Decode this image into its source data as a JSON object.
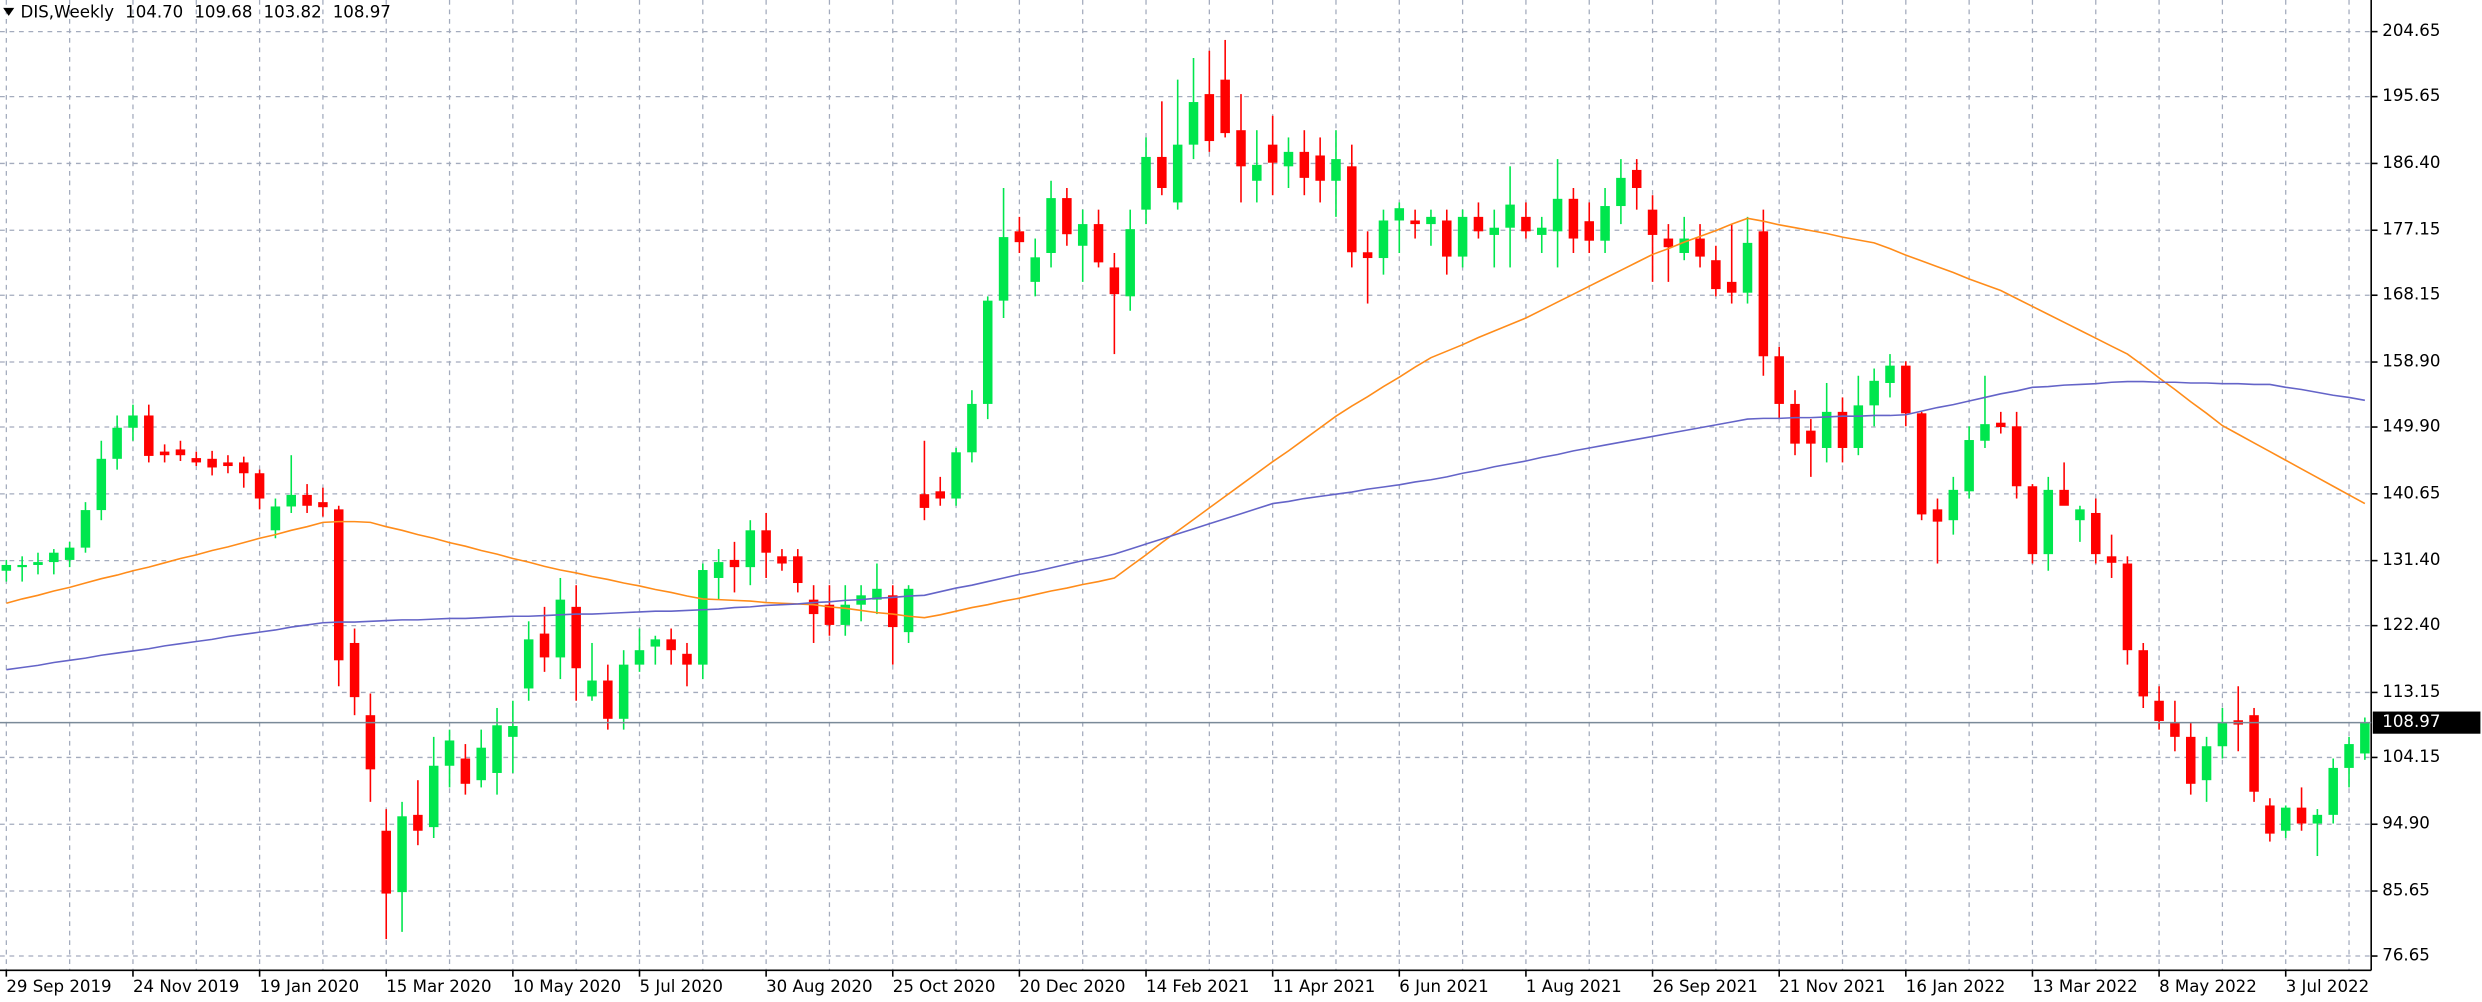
{
  "chart_data": {
    "type": "candlestick",
    "symbol": "DIS,Weekly",
    "quote": [
      {
        "value": 104.7,
        "label": "104.70"
      },
      {
        "value": 109.68,
        "label": "109.68"
      },
      {
        "value": 103.82,
        "label": "103.82"
      },
      {
        "value": 108.97,
        "label": "108.97"
      }
    ],
    "categories": [
      "29 Sep 2019",
      null,
      null,
      null,
      null,
      null,
      null,
      null,
      "24 Nov 2019",
      null,
      null,
      null,
      null,
      null,
      null,
      null,
      "19 Jan 2020",
      null,
      null,
      null,
      null,
      null,
      null,
      null,
      "15 Mar 2020",
      null,
      null,
      null,
      null,
      null,
      null,
      null,
      "10 May 2020",
      null,
      null,
      null,
      null,
      null,
      null,
      null,
      "5 Jul 2020",
      null,
      null,
      null,
      null,
      null,
      null,
      null,
      "30 Aug 2020",
      null,
      null,
      null,
      null,
      null,
      null,
      null,
      "25 Oct 2020",
      null,
      null,
      null,
      null,
      null,
      null,
      null,
      "20 Dec 2020",
      null,
      null,
      null,
      null,
      null,
      null,
      null,
      "14 Feb 2021",
      null,
      null,
      null,
      null,
      null,
      null,
      null,
      "11 Apr 2021",
      null,
      null,
      null,
      null,
      null,
      null,
      null,
      "6 Jun 2021",
      null,
      null,
      null,
      null,
      null,
      null,
      null,
      "1 Aug 2021",
      null,
      null,
      null,
      null,
      null,
      null,
      null,
      "26 Sep 2021",
      null,
      null,
      null,
      null,
      null,
      null,
      null,
      "21 Nov 2021",
      null,
      null,
      null,
      null,
      null,
      null,
      null,
      "16 Jan 2022",
      null,
      null,
      null,
      null,
      null,
      null,
      null,
      "13 Mar 2022",
      null,
      null,
      null,
      null,
      null,
      null,
      null,
      "8 May 2022",
      null,
      null,
      null,
      null,
      null,
      null,
      null,
      "3 Jul 2022",
      null,
      null,
      null,
      null,
      null
    ],
    "open": [
      130.0,
      130.5,
      130.8,
      131.2,
      131.5,
      133.2,
      138.4,
      145.5,
      149.8,
      151.5,
      146.5,
      146.8,
      145.6,
      145.5,
      145.0,
      145.0,
      143.5,
      135.6,
      138.9,
      140.5,
      139.5,
      138.5,
      120.0,
      110.0,
      94.0,
      85.5,
      96.2,
      94.5,
      103.0,
      104.0,
      101.0,
      102.0,
      107.0,
      113.7,
      121.3,
      118.0,
      125.0,
      112.6,
      114.8,
      109.5,
      117.0,
      119.5,
      120.5,
      118.5,
      117.0,
      129.0,
      131.5,
      130.5,
      135.6,
      132.0,
      132.0,
      126.0,
      125.3,
      122.5,
      125.3,
      126.0,
      126.6,
      121.5,
      140.6,
      141.0,
      140.0,
      146.4,
      153.1,
      167.4,
      177.0,
      170.0,
      174.0,
      181.6,
      175.0,
      178.0,
      172.0,
      168.0,
      180.0,
      187.3,
      181.0,
      189.0,
      196.0,
      198.0,
      191.0,
      184.0,
      189.0,
      186.0,
      188.0,
      187.5,
      184.0,
      186.0,
      174.1,
      173.3,
      178.5,
      178.5,
      178.0,
      178.5,
      173.5,
      179.0,
      176.5,
      177.5,
      179.0,
      176.5,
      177.0,
      181.5,
      178.4,
      175.7,
      180.5,
      185.5,
      180.0,
      176.0,
      174.0,
      176.0,
      173.0,
      170.0,
      168.5,
      177.0,
      159.7,
      153.1,
      149.4,
      147.0,
      152.0,
      147.0,
      152.9,
      156.0,
      158.4,
      151.8,
      138.5,
      137.0,
      141.0,
      148.0,
      150.5,
      150.0,
      141.7,
      132.3,
      141.2,
      137.0,
      138.0,
      132.0,
      131.0,
      119.0,
      112.0,
      109.0,
      107.0,
      101.0,
      105.7,
      109.3,
      110.0,
      97.5,
      94.0,
      97.2,
      95.0,
      96.2,
      102.7,
      104.7
    ],
    "high": [
      131.5,
      132.0,
      132.5,
      133.0,
      134.0,
      139.5,
      148.0,
      151.5,
      153.0,
      153.0,
      147.5,
      148.0,
      146.5,
      146.6,
      146.0,
      145.8,
      144.0,
      140.0,
      146.0,
      142.0,
      141.5,
      139.0,
      122.0,
      113.0,
      97.0,
      98.0,
      101.0,
      107.0,
      108.0,
      106.0,
      108.0,
      111.0,
      112.0,
      123.0,
      125.0,
      129.0,
      128.0,
      120.0,
      117.0,
      119.0,
      122.0,
      121.0,
      122.0,
      120.0,
      131.0,
      133.0,
      134.0,
      137.0,
      138.0,
      133.0,
      133.0,
      128.0,
      128.0,
      128.0,
      128.0,
      131.0,
      128.0,
      128.0,
      148.0,
      143.0,
      147.0,
      155.0,
      168.0,
      183.0,
      179.0,
      176.0,
      184.0,
      183.0,
      180.0,
      180.0,
      174.0,
      180.0,
      190.0,
      195.0,
      198.0,
      201.0,
      202.0,
      203.5,
      196.0,
      191.0,
      193.0,
      190.0,
      191.0,
      190.0,
      191.0,
      189.0,
      177.0,
      180.0,
      181.0,
      180.0,
      180.0,
      180.0,
      180.0,
      181.0,
      180.0,
      186.0,
      181.0,
      179.0,
      187.0,
      183.0,
      181.0,
      183.0,
      187.0,
      187.0,
      182.0,
      178.0,
      179.0,
      178.0,
      175.0,
      178.0,
      179.0,
      180.0,
      161.0,
      155.0,
      151.0,
      156.0,
      154.0,
      157.0,
      158.0,
      160.0,
      159.0,
      152.0,
      140.0,
      143.0,
      150.0,
      157.0,
      152.0,
      152.0,
      142.0,
      143.0,
      145.0,
      139.0,
      140.0,
      135.0,
      132.0,
      120.0,
      114.0,
      112.0,
      109.0,
      107.0,
      111.0,
      114.0,
      111.0,
      98.5,
      97.5,
      100.0,
      97.0,
      104.0,
      107.0,
      109.68
    ],
    "low": [
      128.5,
      128.5,
      129.5,
      129.5,
      130.5,
      132.5,
      137.0,
      144.0,
      148.0,
      145.0,
      145.0,
      145.2,
      144.5,
      143.2,
      143.5,
      141.5,
      138.5,
      134.5,
      138.0,
      138.0,
      137.5,
      114.0,
      110.0,
      98.0,
      79.0,
      80.0,
      92.0,
      93.0,
      100.0,
      99.0,
      100.0,
      99.0,
      102.0,
      112.0,
      116.0,
      115.0,
      112.0,
      112.0,
      108.0,
      108.0,
      116.0,
      117.0,
      117.0,
      114.0,
      115.0,
      126.0,
      127.0,
      128.0,
      129.0,
      130.0,
      127.0,
      120.0,
      121.0,
      121.0,
      123.0,
      124.0,
      117.0,
      120.0,
      137.0,
      139.0,
      139.0,
      145.0,
      151.0,
      165.0,
      174.0,
      168.0,
      172.0,
      175.0,
      170.0,
      172.0,
      160.0,
      166.0,
      178.0,
      182.0,
      180.0,
      187.0,
      188.0,
      190.0,
      181.0,
      181.0,
      182.0,
      183.0,
      182.0,
      181.0,
      179.0,
      172.0,
      167.0,
      171.0,
      174.0,
      176.0,
      175.0,
      171.0,
      172.0,
      176.0,
      172.0,
      172.0,
      176.0,
      174.0,
      172.0,
      174.0,
      174.0,
      174.0,
      178.0,
      180.0,
      170.0,
      170.0,
      173.0,
      172.0,
      168.0,
      167.0,
      167.0,
      157.0,
      151.0,
      146.0,
      143.0,
      145.0,
      145.0,
      146.0,
      150.0,
      154.0,
      150.0,
      137.0,
      131.0,
      135.0,
      140.0,
      147.0,
      149.0,
      140.0,
      131.0,
      130.0,
      140.0,
      134.0,
      131.0,
      129.0,
      117.0,
      111.0,
      108.0,
      105.0,
      99.0,
      98.0,
      104.0,
      105.0,
      98.0,
      92.5,
      93.0,
      94.0,
      90.5,
      95.0,
      100.0,
      103.82
    ],
    "close": [
      130.8,
      130.8,
      131.2,
      132.5,
      133.2,
      138.4,
      145.5,
      149.8,
      151.5,
      145.9,
      146.0,
      146.0,
      145.0,
      144.3,
      144.5,
      143.5,
      140.0,
      138.9,
      140.5,
      139.0,
      138.8,
      117.6,
      112.5,
      102.5,
      85.3,
      96.0,
      94.0,
      103.0,
      106.5,
      100.5,
      105.5,
      108.6,
      108.5,
      120.5,
      118.0,
      126.0,
      116.5,
      114.8,
      109.5,
      117.0,
      119.0,
      120.5,
      119.0,
      117.0,
      130.1,
      131.2,
      130.5,
      135.6,
      132.5,
      131.0,
      128.3,
      124.0,
      122.5,
      125.3,
      126.6,
      127.5,
      122.2,
      127.5,
      138.7,
      140.0,
      146.4,
      153.1,
      167.4,
      176.2,
      175.5,
      173.4,
      181.6,
      176.6,
      178.0,
      172.7,
      168.3,
      177.3,
      187.3,
      183.0,
      189.0,
      194.9,
      189.5,
      190.6,
      186.0,
      186.2,
      186.5,
      188.0,
      184.4,
      184.0,
      187.0,
      174.1,
      173.3,
      178.5,
      180.2,
      178.0,
      179.0,
      173.5,
      179.0,
      177.0,
      177.5,
      180.7,
      177.0,
      177.5,
      181.5,
      176.0,
      175.7,
      180.5,
      184.4,
      183.0,
      176.5,
      174.8,
      176.0,
      173.5,
      169.0,
      168.5,
      175.4,
      159.7,
      153.1,
      147.6,
      147.6,
      152.0,
      147.0,
      152.9,
      156.3,
      158.4,
      151.8,
      137.8,
      136.8,
      141.2,
      148.1,
      150.3,
      149.9,
      141.7,
      132.3,
      141.2,
      139.0,
      138.5,
      132.3,
      131.1,
      119.0,
      112.6,
      109.2,
      107.0,
      100.5,
      105.7,
      109.0,
      108.7,
      99.4,
      93.6,
      97.2,
      95.0,
      96.2,
      102.7,
      106.0,
      108.97
    ],
    "up_color": "#00e64d",
    "down_color": "#ff0000",
    "lines": [
      {
        "color": "#ff8c1a",
        "values": [
          125.5,
          126.1,
          126.6,
          127.2,
          127.7,
          128.3,
          128.9,
          129.4,
          130.0,
          130.5,
          131.1,
          131.7,
          132.2,
          132.8,
          133.3,
          133.9,
          134.5,
          135.0,
          135.6,
          136.1,
          136.7,
          136.8,
          136.8,
          136.7,
          136.1,
          135.6,
          135.0,
          134.5,
          133.9,
          133.4,
          132.8,
          132.3,
          131.7,
          131.2,
          130.6,
          130.1,
          129.7,
          129.2,
          128.8,
          128.3,
          127.9,
          127.4,
          127.0,
          126.5,
          126.1,
          126.0,
          125.9,
          125.8,
          125.6,
          125.5,
          125.4,
          125.3,
          125.0,
          124.8,
          124.5,
          124.2,
          124.0,
          123.7,
          123.5,
          123.9,
          124.4,
          124.9,
          125.3,
          125.8,
          126.2,
          126.7,
          127.2,
          127.6,
          128.1,
          128.5,
          129.0,
          130.6,
          132.2,
          133.9,
          135.5,
          137.1,
          138.7,
          140.3,
          141.9,
          143.5,
          145.1,
          146.6,
          148.2,
          149.8,
          151.4,
          152.8,
          154.1,
          155.5,
          156.8,
          158.2,
          159.5,
          160.4,
          161.3,
          162.3,
          163.2,
          164.1,
          165.0,
          166.1,
          167.2,
          168.3,
          169.4,
          170.5,
          171.6,
          172.7,
          173.8,
          174.6,
          175.5,
          176.3,
          177.1,
          178.0,
          178.8,
          178.4,
          177.9,
          177.5,
          177.1,
          176.7,
          176.2,
          175.8,
          175.4,
          174.6,
          173.7,
          172.9,
          172.1,
          171.3,
          170.4,
          169.6,
          168.8,
          167.7,
          166.6,
          165.5,
          164.4,
          163.3,
          162.2,
          161.1,
          160.0,
          158.4,
          156.7,
          155.1,
          153.4,
          151.8,
          150.1,
          148.9,
          147.7,
          146.5,
          145.3,
          144.1,
          142.9,
          141.7,
          140.5,
          139.3
        ]
      },
      {
        "color": "#6464c8",
        "values": [
          116.3,
          116.6,
          116.9,
          117.3,
          117.6,
          117.9,
          118.3,
          118.6,
          118.9,
          119.2,
          119.6,
          119.9,
          120.2,
          120.5,
          120.9,
          121.2,
          121.5,
          121.8,
          122.2,
          122.5,
          122.8,
          122.9,
          122.9,
          123.0,
          123.1,
          123.2,
          123.2,
          123.3,
          123.4,
          123.4,
          123.5,
          123.6,
          123.7,
          123.7,
          123.8,
          123.9,
          124.0,
          124.0,
          124.1,
          124.2,
          124.3,
          124.4,
          124.4,
          124.5,
          124.6,
          124.7,
          124.9,
          125.0,
          125.2,
          125.3,
          125.4,
          125.6,
          125.7,
          125.9,
          126.0,
          126.2,
          126.3,
          126.5,
          126.6,
          127.1,
          127.6,
          128.0,
          128.5,
          129.0,
          129.5,
          129.9,
          130.4,
          130.9,
          131.4,
          131.8,
          132.3,
          133.0,
          133.7,
          134.4,
          135.1,
          135.8,
          136.5,
          137.2,
          137.9,
          138.6,
          139.3,
          139.6,
          140.0,
          140.3,
          140.6,
          140.9,
          141.3,
          141.6,
          141.9,
          142.3,
          142.6,
          143.0,
          143.5,
          143.9,
          144.4,
          144.8,
          145.2,
          145.7,
          146.1,
          146.6,
          147.0,
          147.4,
          147.8,
          148.2,
          148.6,
          149.0,
          149.4,
          149.8,
          150.2,
          150.6,
          151.0,
          151.1,
          151.1,
          151.2,
          151.2,
          151.3,
          151.4,
          151.4,
          151.5,
          151.5,
          151.6,
          152.1,
          152.6,
          153.0,
          153.5,
          154.0,
          154.5,
          154.9,
          155.4,
          155.5,
          155.7,
          155.8,
          155.9,
          156.1,
          156.2,
          156.2,
          156.1,
          156.1,
          156.0,
          156.0,
          155.9,
          155.9,
          155.8,
          155.8,
          155.4,
          155.1,
          154.7,
          154.3,
          154.0,
          153.6
        ]
      }
    ],
    "last_price": {
      "value": 108.97,
      "label": "108.97"
    },
    "ylim": [
      74.67,
      209.03
    ],
    "yticks": [
      204.65,
      195.65,
      {
        "value": 186.4,
        "label": "186.40"
      },
      177.15,
      168.15,
      {
        "value": 158.9,
        "label": "158.90"
      },
      {
        "value": 149.9,
        "label": "149.90"
      },
      140.65,
      {
        "value": 131.4,
        "label": "131.40"
      },
      {
        "value": 122.4,
        "label": "122.40"
      },
      113.15,
      104.15,
      {
        "value": 94.9,
        "label": "94.90"
      },
      85.65,
      76.65
    ],
    "grid": true
  }
}
